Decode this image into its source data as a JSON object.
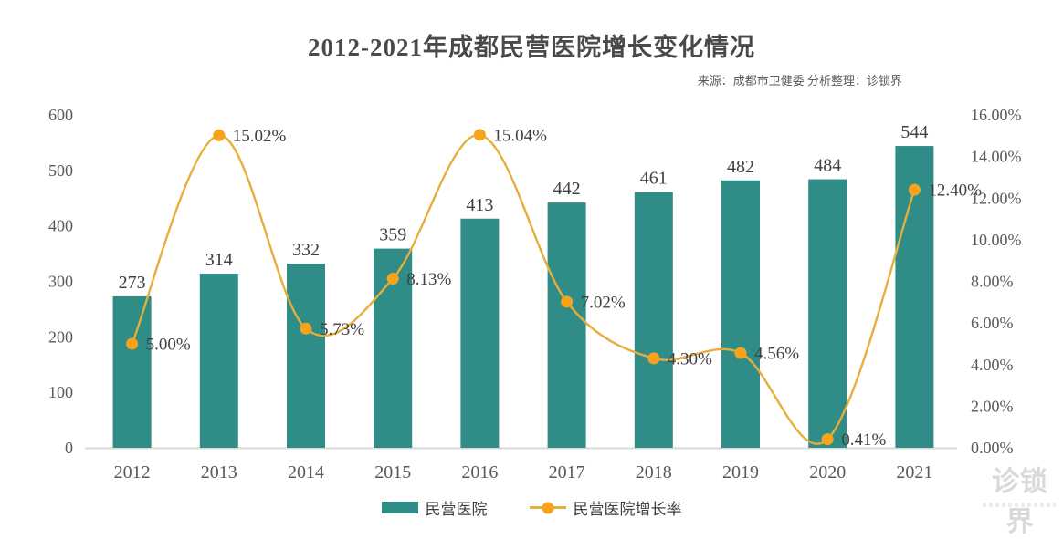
{
  "chart_data": {
    "type": "bar",
    "title": "2012-2021年成都民营医院增长变化情况",
    "source": "来源：成都市卫健委 分析整理：诊锁界",
    "categories": [
      "2012",
      "2013",
      "2014",
      "2015",
      "2016",
      "2017",
      "2018",
      "2019",
      "2020",
      "2021"
    ],
    "series": [
      {
        "name": "民营医院",
        "type": "bar",
        "values": [
          273,
          314,
          332,
          359,
          413,
          442,
          461,
          482,
          484,
          544
        ],
        "color": "#2f8c86",
        "axis": "left"
      },
      {
        "name": "民营医院增长率",
        "type": "line",
        "values": [
          5.0,
          15.02,
          5.73,
          8.13,
          15.04,
          7.02,
          4.3,
          4.56,
          0.41,
          12.4
        ],
        "labels": [
          "5.00%",
          "15.02%",
          "5.73%",
          "8.13%",
          "15.04%",
          "7.02%",
          "4.30%",
          "4.56%",
          "0.41%",
          "12.40%"
        ],
        "color": "#e6ae3c",
        "marker_color": "#f6a41c",
        "axis": "right"
      }
    ],
    "left_axis": {
      "min": 0,
      "max": 600,
      "tick_labels": [
        "0",
        "100",
        "200",
        "300",
        "400",
        "500",
        "600"
      ]
    },
    "right_axis": {
      "min": 0,
      "max": 16,
      "tick_labels": [
        "0.00%",
        "2.00%",
        "4.00%",
        "6.00%",
        "8.00%",
        "10.00%",
        "12.00%",
        "14.00%",
        "16.00%"
      ]
    },
    "grid": false,
    "legend_position": "bottom"
  },
  "legend": {
    "bar_label": "民营医院",
    "line_label": "民营医院增长率"
  },
  "watermark": "诊锁界",
  "colors": {
    "bar": "#2f8c86",
    "line": "#e6ae3c",
    "marker": "#f6a41c",
    "baseline": "#d9d9d9",
    "axis_text": "#595959",
    "label_text": "#404040",
    "title_text": "#4a4a4a"
  }
}
